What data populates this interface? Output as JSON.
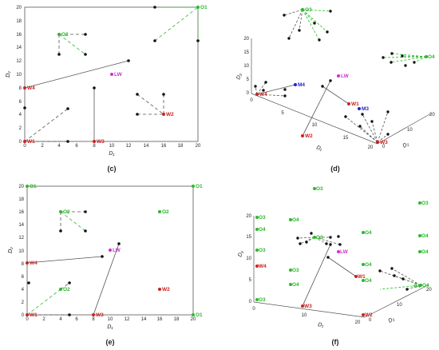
{
  "panels": [
    {
      "id": "c",
      "caption": "(c)",
      "view": "2d",
      "xlabel": "D₁",
      "ylabel": "D₂",
      "xticks": [
        "0",
        "2",
        "4",
        "6",
        "8",
        "10",
        "12",
        "14",
        "16",
        "18",
        "20"
      ],
      "yticks": [
        "0",
        "2",
        "4",
        "6",
        "8",
        "10",
        "12",
        "14",
        "16",
        "18",
        "20"
      ],
      "labels": [
        {
          "text": "O1",
          "x": 20,
          "y": 20,
          "color": "#2db82d"
        },
        {
          "text": "O2",
          "x": 4,
          "y": 16,
          "color": "#2db82d"
        },
        {
          "text": "LW",
          "x": 10,
          "y": 10,
          "color": "#cc33cc"
        },
        {
          "text": "W4",
          "x": 0,
          "y": 8,
          "color": "#cc2222"
        },
        {
          "text": "W2",
          "x": 16,
          "y": 4,
          "color": "#cc2222"
        },
        {
          "text": "W1",
          "x": 0,
          "y": 0,
          "color": "#cc2222"
        },
        {
          "text": "W3",
          "x": 8,
          "y": 0,
          "color": "#cc2222"
        }
      ]
    },
    {
      "id": "d",
      "caption": "(d)",
      "view": "3d",
      "xlabel": "D₁",
      "ylabel": "D₂",
      "zlabel": "D₃",
      "xticks": [
        "0",
        "5",
        "10",
        "15",
        "20"
      ],
      "yticks": [
        "0",
        "10",
        "20"
      ],
      "zticks": [
        "0",
        "5",
        "10",
        "15",
        "20"
      ],
      "labels": [
        {
          "text": "O3",
          "color": "#2db82d"
        },
        {
          "text": "O4",
          "color": "#2db82d"
        },
        {
          "text": "M4",
          "color": "#2222cc"
        },
        {
          "text": "W4",
          "color": "#cc2222"
        },
        {
          "text": "LW",
          "color": "#cc33cc"
        },
        {
          "text": "W1",
          "color": "#cc2222"
        },
        {
          "text": "M3",
          "color": "#2222cc"
        },
        {
          "text": "W2",
          "color": "#cc2222"
        },
        {
          "text": "W3",
          "color": "#cc2222"
        }
      ]
    },
    {
      "id": "e",
      "caption": "(e)",
      "view": "2d",
      "xlabel": "D₁",
      "ylabel": "D₂",
      "xticks": [
        "0",
        "2",
        "4",
        "6",
        "8",
        "10",
        "12",
        "14",
        "16",
        "18",
        "20"
      ],
      "yticks": [
        "0",
        "2",
        "4",
        "6",
        "8",
        "10",
        "12",
        "14",
        "16",
        "18",
        "20"
      ],
      "labels": [
        {
          "text": "O1",
          "x": 0,
          "y": 20,
          "color": "#2db82d"
        },
        {
          "text": "O1",
          "x": 20,
          "y": 20,
          "color": "#2db82d"
        },
        {
          "text": "O2",
          "x": 4,
          "y": 16,
          "color": "#2db82d"
        },
        {
          "text": "O2",
          "x": 16,
          "y": 16,
          "color": "#2db82d"
        },
        {
          "text": "LW",
          "x": 10,
          "y": 10,
          "color": "#cc33cc"
        },
        {
          "text": "W4",
          "x": 0,
          "y": 8,
          "color": "#cc2222"
        },
        {
          "text": "O2",
          "x": 4,
          "y": 4,
          "color": "#2db82d"
        },
        {
          "text": "W2",
          "x": 16,
          "y": 4,
          "color": "#cc2222"
        },
        {
          "text": "W1",
          "x": 0,
          "y": 0,
          "color": "#cc2222"
        },
        {
          "text": "W3",
          "x": 8,
          "y": 0,
          "color": "#cc2222"
        },
        {
          "text": "O1",
          "x": 20,
          "y": 0,
          "color": "#2db82d"
        }
      ]
    },
    {
      "id": "f",
      "caption": "(f)",
      "view": "3d",
      "xlabel": "D₁",
      "ylabel": "D₂",
      "zlabel": "D₃",
      "xticks": [
        "0",
        "10",
        "20"
      ],
      "yticks": [
        "0",
        "10",
        "20"
      ],
      "zticks": [
        "0",
        "5",
        "10",
        "15",
        "20"
      ],
      "labels": [
        {
          "text": "O3",
          "color": "#2db82d"
        },
        {
          "text": "O3",
          "color": "#2db82d"
        },
        {
          "text": "O3",
          "color": "#2db82d"
        },
        {
          "text": "O4",
          "color": "#2db82d"
        },
        {
          "text": "O4",
          "color": "#2db82d"
        },
        {
          "text": "O3",
          "color": "#2db82d"
        },
        {
          "text": "O4",
          "color": "#2db82d"
        },
        {
          "text": "O4",
          "color": "#2db82d"
        },
        {
          "text": "O3",
          "color": "#2db82d"
        },
        {
          "text": "O3",
          "color": "#2db82d"
        },
        {
          "text": "O4",
          "color": "#2db82d"
        },
        {
          "text": "O4",
          "color": "#2db82d"
        },
        {
          "text": "W4",
          "color": "#cc2222"
        },
        {
          "text": "LW",
          "color": "#cc33cc"
        },
        {
          "text": "W1",
          "color": "#cc2222"
        },
        {
          "text": "O4",
          "color": "#2db82d"
        },
        {
          "text": "O4",
          "color": "#2db82d"
        },
        {
          "text": "O3",
          "color": "#2db82d"
        },
        {
          "text": "O4",
          "color": "#2db82d"
        },
        {
          "text": "W3",
          "color": "#cc2222"
        },
        {
          "text": "W2",
          "color": "#cc2222"
        },
        {
          "text": "O4",
          "color": "#2db82d"
        }
      ]
    }
  ]
}
